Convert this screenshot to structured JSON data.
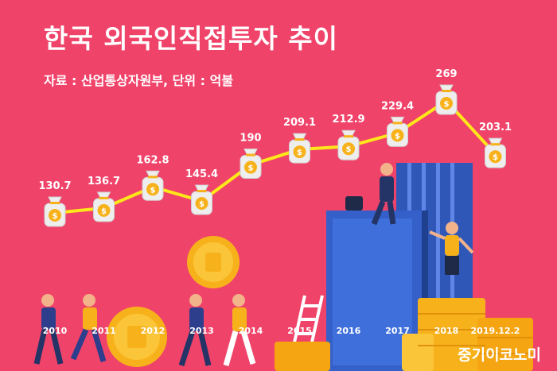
{
  "header": {
    "title": "한국 외국인직접투자 추이",
    "source": "자료 : 산업통상자원부, 단위 : 억불"
  },
  "footer": {
    "brand": "중기이코노미"
  },
  "colors": {
    "background": "#f0436a",
    "line": "#ffe81a",
    "bag": "#eeeeee",
    "coin": "#f7b21b",
    "text": "#ffffff"
  },
  "chart_data": {
    "type": "line",
    "title": "한국 외국인직접투자 추이",
    "subtitle": "자료 : 산업통상자원부, 단위 : 억불",
    "categories": [
      "2010",
      "2011",
      "2012",
      "2013",
      "2014",
      "2015",
      "2016",
      "2017",
      "2018",
      "2019.12.2"
    ],
    "values": [
      130.7,
      136.7,
      162.8,
      145.4,
      190,
      209.1,
      212.9,
      229.4,
      269,
      203.1
    ],
    "value_labels": [
      "130.7",
      "136.7",
      "162.8",
      "145.4",
      "190",
      "209.1",
      "212.9",
      "229.4",
      "269",
      "203.1"
    ],
    "marker": "money-bag-icon",
    "grid": false,
    "legend": "none"
  }
}
